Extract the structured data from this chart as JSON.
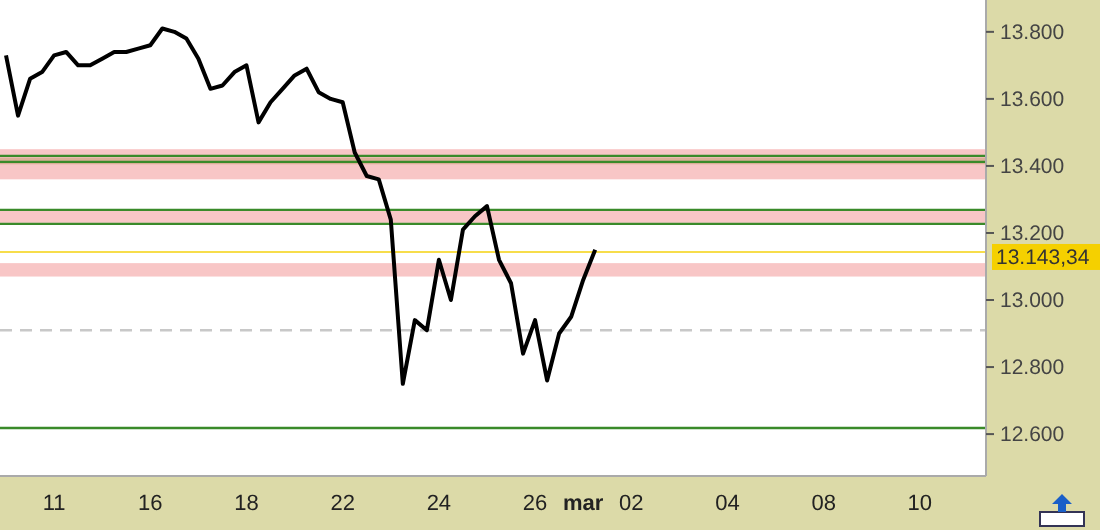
{
  "chart_data": {
    "type": "line",
    "categories": [
      null,
      null,
      null,
      null,
      "11",
      null,
      null,
      null,
      null,
      null,
      null,
      null,
      "16",
      null,
      null,
      null,
      null,
      null,
      null,
      null,
      "18",
      null,
      null,
      null,
      null,
      null,
      null,
      null,
      "22",
      null,
      null,
      null,
      null,
      null,
      null,
      null,
      "24",
      null,
      null,
      null,
      null,
      null,
      null,
      null,
      "26",
      null,
      null,
      null,
      "mar",
      null,
      null,
      null,
      "02",
      null,
      null,
      null,
      null,
      null,
      null,
      null,
      "04",
      null,
      null,
      null,
      null,
      null,
      null,
      null,
      "08",
      null,
      null,
      null,
      null,
      null,
      null,
      null,
      "10",
      null,
      null,
      null,
      null,
      null
    ],
    "series": [
      {
        "color": "#000000",
        "values": [
          13730,
          13550,
          13660,
          13680,
          13730,
          13740,
          13700,
          13700,
          13720,
          13740,
          13740,
          13750,
          13760,
          13810,
          13800,
          13780,
          13720,
          13630,
          13640,
          13680,
          13700,
          13530,
          13590,
          13630,
          13670,
          13690,
          13620,
          13600,
          13590,
          13440,
          13370,
          13360,
          13240,
          12750,
          12940,
          12910,
          13120,
          13000,
          13210,
          13250,
          13280,
          13120,
          13050,
          12840,
          12940,
          12760,
          12900,
          12950,
          13060,
          13150,
          null,
          null,
          null,
          null,
          null,
          null,
          null,
          null,
          null,
          null,
          null,
          null,
          null,
          null,
          null,
          null,
          null,
          null,
          null,
          null,
          null,
          null,
          null,
          null,
          null,
          null,
          null,
          null,
          null,
          null,
          null,
          null
        ]
      }
    ],
    "ylim": [
      12475,
      13895
    ],
    "yticks": [
      {
        "value": 12600,
        "label": "12.600"
      },
      {
        "value": 12800,
        "label": "12.800"
      },
      {
        "value": 13000,
        "label": "13.000"
      },
      {
        "value": 13200,
        "label": "13.200"
      },
      {
        "value": 13400,
        "label": "13.400"
      },
      {
        "value": 13600,
        "label": "13.600"
      },
      {
        "value": 13800,
        "label": "13.800"
      }
    ],
    "bands": [
      {
        "axis": "y",
        "from": 13360,
        "to": 13450,
        "color": "#f4a0a0"
      },
      {
        "axis": "y",
        "from": 13070,
        "to": 13110,
        "color": "#f4a0a0"
      },
      {
        "axis": "y",
        "from": 13230,
        "to": 13270,
        "color": "#f4a0a0"
      },
      {
        "axis": "y",
        "from": 13405,
        "to": 13425,
        "color": "#c8a078"
      }
    ],
    "ref_lines": [
      {
        "axis": "y",
        "value": 13430,
        "color": "#3a8a2a",
        "line_style": "solid"
      },
      {
        "axis": "y",
        "value": 13412,
        "color": "#3a8a2a",
        "line_style": "solid"
      },
      {
        "axis": "y",
        "value": 13269,
        "color": "#3a8a2a",
        "line_style": "solid"
      },
      {
        "axis": "y",
        "value": 13227,
        "color": "#3a8a2a",
        "line_style": "solid"
      },
      {
        "axis": "y",
        "value": 12618,
        "color": "#3a8a2a",
        "line_style": "solid"
      },
      {
        "axis": "y",
        "value": 12910,
        "color": "#c8c8c8",
        "line_style": "dashed"
      },
      {
        "axis": "y",
        "value": 13143.34,
        "label": "13.143,34",
        "color": "#f5d000",
        "line_style": "solid"
      }
    ]
  }
}
